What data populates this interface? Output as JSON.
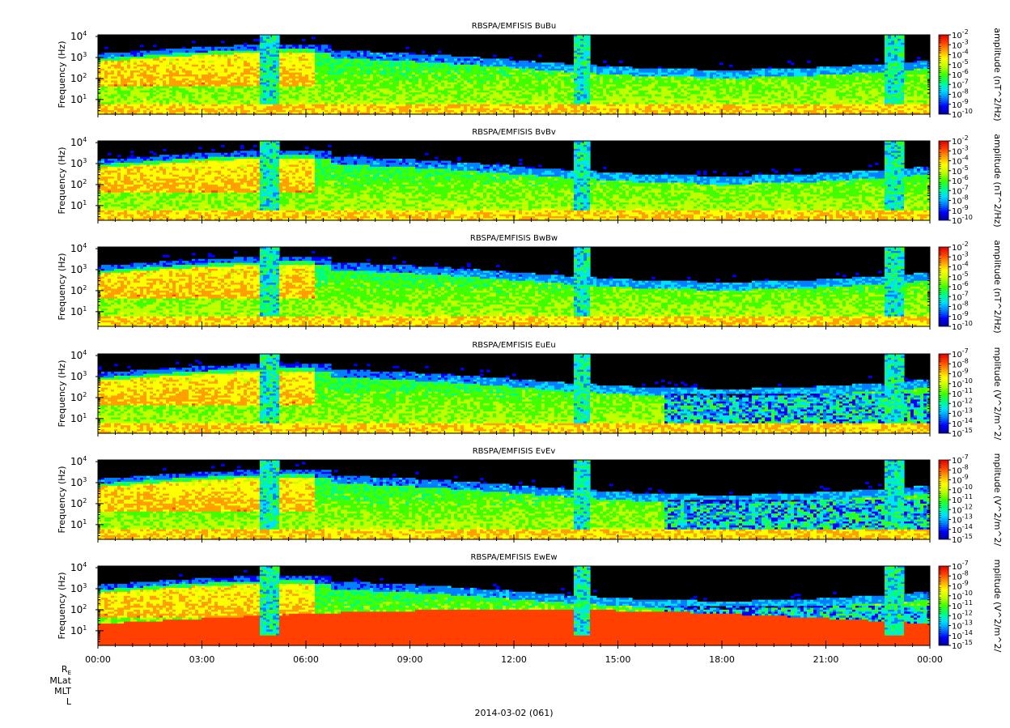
{
  "figure": {
    "date_label": "2014-03-02 (061)",
    "ephemeris_labels": [
      "R",
      "MLat",
      "MLT",
      "L"
    ],
    "re_subscript": "E"
  },
  "chart_data": [
    {
      "type": "heatmap",
      "title": "RBSPA/EMFISIS  BuBu",
      "ylabel": "Frequency (Hz)",
      "yscale": "log",
      "ylim": [
        2,
        12000
      ],
      "yticks": [
        "10^1",
        "10^2",
        "10^3",
        "10^4"
      ],
      "xticks": [
        "00:00",
        "03:00",
        "06:00",
        "09:00",
        "12:00",
        "15:00",
        "18:00",
        "21:00",
        "00:00"
      ],
      "colorbar": {
        "label": "amplitude (nT^2/Hz)",
        "scale": "log",
        "ticks": [
          "10^-2",
          "10^-3",
          "10^-4",
          "10^-5",
          "10^-6",
          "10^-7",
          "10^-8",
          "10^-9",
          "10^-10"
        ]
      }
    },
    {
      "type": "heatmap",
      "title": "RBSPA/EMFISIS  BvBv",
      "ylabel": "Frequency (Hz)",
      "yscale": "log",
      "ylim": [
        2,
        12000
      ],
      "yticks": [
        "10^1",
        "10^2",
        "10^3",
        "10^4"
      ],
      "xticks": [
        "00:00",
        "03:00",
        "06:00",
        "09:00",
        "12:00",
        "15:00",
        "18:00",
        "21:00",
        "00:00"
      ],
      "colorbar": {
        "label": "amplitude (nT^2/Hz)",
        "scale": "log",
        "ticks": [
          "10^-2",
          "10^-3",
          "10^-4",
          "10^-5",
          "10^-6",
          "10^-7",
          "10^-8",
          "10^-9",
          "10^-10"
        ]
      }
    },
    {
      "type": "heatmap",
      "title": "RBSPA/EMFISIS  BwBw",
      "ylabel": "Frequency (Hz)",
      "yscale": "log",
      "ylim": [
        2,
        12000
      ],
      "yticks": [
        "10^1",
        "10^2",
        "10^3",
        "10^4"
      ],
      "xticks": [
        "00:00",
        "03:00",
        "06:00",
        "09:00",
        "12:00",
        "15:00",
        "18:00",
        "21:00",
        "00:00"
      ],
      "colorbar": {
        "label": "amplitude (nT^2/Hz)",
        "scale": "log",
        "ticks": [
          "10^-2",
          "10^-3",
          "10^-4",
          "10^-5",
          "10^-6",
          "10^-7",
          "10^-8",
          "10^-9",
          "10^-10"
        ]
      }
    },
    {
      "type": "heatmap",
      "title": "RBSPA/EMFISIS  EuEu",
      "ylabel": "Frequency (Hz)",
      "yscale": "log",
      "ylim": [
        2,
        12000
      ],
      "yticks": [
        "10^1",
        "10^2",
        "10^3",
        "10^4"
      ],
      "xticks": [
        "00:00",
        "03:00",
        "06:00",
        "09:00",
        "12:00",
        "15:00",
        "18:00",
        "21:00",
        "00:00"
      ],
      "colorbar": {
        "label": "mplitude (V^2/m^2/",
        "scale": "log",
        "ticks": [
          "10^-7",
          "10^-8",
          "10^-9",
          "10^-10",
          "10^-11",
          "10^-12",
          "10^-13",
          "10^-14",
          "10^-15"
        ]
      }
    },
    {
      "type": "heatmap",
      "title": "RBSPA/EMFISIS  EvEv",
      "ylabel": "Frequency (Hz)",
      "yscale": "log",
      "ylim": [
        2,
        12000
      ],
      "yticks": [
        "10^1",
        "10^2",
        "10^3",
        "10^4"
      ],
      "xticks": [
        "00:00",
        "03:00",
        "06:00",
        "09:00",
        "12:00",
        "15:00",
        "18:00",
        "21:00",
        "00:00"
      ],
      "colorbar": {
        "label": "mplitude (V^2/m^2/",
        "scale": "log",
        "ticks": [
          "10^-7",
          "10^-8",
          "10^-9",
          "10^-10",
          "10^-11",
          "10^-12",
          "10^-13",
          "10^-14",
          "10^-15"
        ]
      }
    },
    {
      "type": "heatmap",
      "title": "RBSPA/EMFISIS  EwEw",
      "ylabel": "Frequency (Hz)",
      "yscale": "log",
      "ylim": [
        2,
        12000
      ],
      "yticks": [
        "10^1",
        "10^2",
        "10^3",
        "10^4"
      ],
      "xticks": [
        "00:00",
        "03:00",
        "06:00",
        "09:00",
        "12:00",
        "15:00",
        "18:00",
        "21:00",
        "00:00"
      ],
      "colorbar": {
        "label": "mplitude (V^2/m^2/",
        "scale": "log",
        "ticks": [
          "10^-7",
          "10^-8",
          "10^-9",
          "10^-10",
          "10^-11",
          "10^-12",
          "10^-13",
          "10^-14",
          "10^-15"
        ]
      }
    }
  ],
  "colormap": [
    "#0000a0",
    "#0000ff",
    "#0080ff",
    "#00e0ff",
    "#00ff80",
    "#40ff00",
    "#c0ff00",
    "#ffff00",
    "#ffa000",
    "#ff4000",
    "#e00000"
  ]
}
